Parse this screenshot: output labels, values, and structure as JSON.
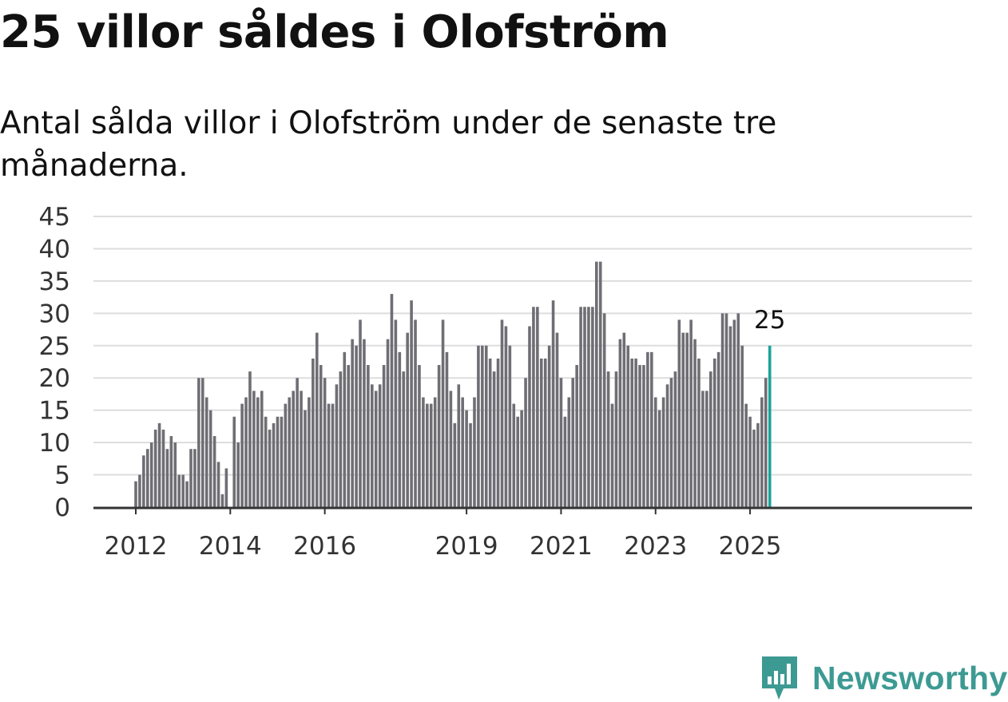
{
  "title": "25 villor såldes i Olofström",
  "subtitle": "Antal sålda villor i Olofström under de senaste tre månaderna.",
  "brand": {
    "name": "Newsworthy",
    "logo_icon": "newsworthy-bar-chart-pin-icon",
    "color": "#3d9a93"
  },
  "colors": {
    "bar": "#6f6e74",
    "highlight": "#1ca39a",
    "grid": "#dddddd",
    "axis": "#333333"
  },
  "chart_data": {
    "type": "bar",
    "title": "25 villor såldes i Olofström",
    "subtitle": "Antal sålda villor i Olofström under de senaste tre månaderna.",
    "ylim": [
      0,
      45
    ],
    "yticks": [
      0,
      5,
      10,
      15,
      20,
      25,
      30,
      35,
      40,
      45
    ],
    "xticks": [
      "2012",
      "2014",
      "2016",
      "2019",
      "2021",
      "2023",
      "2025"
    ],
    "grid": true,
    "start": "2012-01",
    "end": "2025-06",
    "frequency": "monthly",
    "values": [
      4,
      5,
      8,
      9,
      10,
      12,
      13,
      12,
      9,
      11,
      10,
      5,
      5,
      4,
      9,
      9,
      20,
      20,
      17,
      15,
      11,
      7,
      2,
      6,
      0,
      14,
      10,
      16,
      17,
      21,
      18,
      17,
      18,
      14,
      12,
      13,
      14,
      14,
      16,
      17,
      18,
      20,
      18,
      15,
      17,
      23,
      27,
      22,
      20,
      16,
      16,
      19,
      21,
      24,
      22,
      26,
      25,
      29,
      26,
      22,
      19,
      18,
      19,
      22,
      26,
      33,
      29,
      24,
      21,
      27,
      32,
      29,
      22,
      17,
      16,
      16,
      17,
      22,
      29,
      24,
      18,
      13,
      19,
      17,
      15,
      13,
      17,
      25,
      25,
      25,
      23,
      21,
      23,
      29,
      28,
      25,
      16,
      14,
      15,
      20,
      28,
      31,
      31,
      23,
      23,
      25,
      32,
      27,
      20,
      14,
      17,
      20,
      22,
      31,
      31,
      31,
      31,
      38,
      38,
      30,
      21,
      16,
      21,
      26,
      27,
      25,
      23,
      23,
      22,
      22,
      24,
      24,
      17,
      15,
      17,
      19,
      20,
      21,
      29,
      27,
      27,
      29,
      26,
      23,
      18,
      18,
      21,
      23,
      24,
      30,
      30,
      28,
      29,
      30,
      25,
      16,
      14,
      12,
      13,
      17,
      20,
      25
    ],
    "highlight_last": true,
    "last_value_label": "25"
  }
}
